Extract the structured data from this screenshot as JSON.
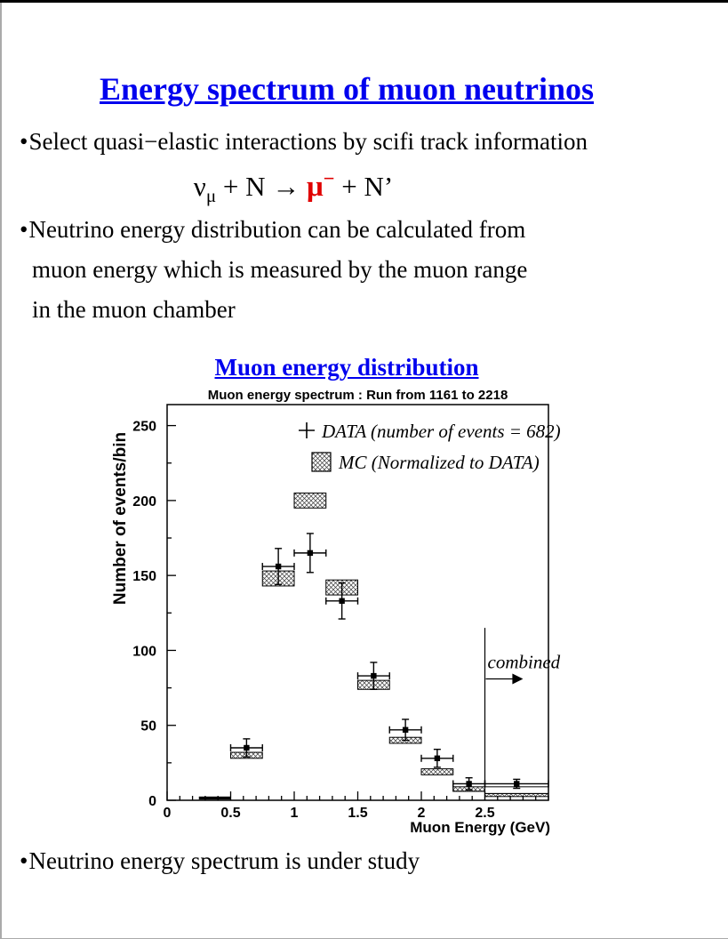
{
  "title": {
    "text": "Energy spectrum of muon neutrinos",
    "color": "#0000ee"
  },
  "bullets": {
    "marker": "•",
    "b1": "Select quasi−elastic interactions by scifi track information",
    "b2_line1": "Neutrino energy distribution can be calculated from",
    "b2_line2": "muon energy which is measured by the muon range",
    "b2_line3": "in the muon chamber",
    "b3": "Neutrino energy spectrum is under study"
  },
  "equation": {
    "nu": "ν",
    "nu_sub": "μ",
    "mid": " + N →  ",
    "mu": "μ",
    "mu_sup": "−",
    "mu_color": "#e00000",
    "tail": "  + N’"
  },
  "chart_heading": {
    "text": "Muon energy distribution",
    "color": "#0000ee"
  },
  "chart_data": {
    "type": "scatter",
    "title": "Muon energy spectrum : Run from 1161 to 2218",
    "xlabel": "Muon Energy (GeV)",
    "ylabel": "Number of events/bin",
    "xlim": [
      0,
      3.0
    ],
    "ylim": [
      0,
      264
    ],
    "grid": false,
    "x_major_ticks": [
      0,
      0.5,
      1,
      1.5,
      2,
      2.5
    ],
    "x_major_labels": [
      "0",
      "0.5",
      "1",
      "1.5",
      "2",
      "2.5"
    ],
    "x_minor_step": 0.1,
    "y_major_ticks": [
      0,
      50,
      100,
      150,
      200,
      250
    ],
    "y_major_labels": [
      "0",
      "50",
      "100",
      "150",
      "200",
      "250"
    ],
    "y_minor_step": 25,
    "legend_position": "top-right-inside",
    "legend": [
      {
        "marker": "plus",
        "label": "DATA (number of events = 682)"
      },
      {
        "marker": "hatched-box",
        "label": "MC (Normalized to DATA)"
      }
    ],
    "series": [
      {
        "name": "DATA",
        "type": "points_with_errors",
        "points": [
          {
            "x": 0.625,
            "y": 35,
            "xerr": 0.125,
            "yerr": 6
          },
          {
            "x": 0.875,
            "y": 156,
            "xerr": 0.125,
            "yerr": 12
          },
          {
            "x": 1.125,
            "y": 165,
            "xerr": 0.125,
            "yerr": 13
          },
          {
            "x": 1.375,
            "y": 133,
            "xerr": 0.125,
            "yerr": 12
          },
          {
            "x": 1.625,
            "y": 83,
            "xerr": 0.125,
            "yerr": 9
          },
          {
            "x": 1.875,
            "y": 47,
            "xerr": 0.125,
            "yerr": 7
          },
          {
            "x": 2.125,
            "y": 28,
            "xerr": 0.125,
            "yerr": 6
          },
          {
            "x": 2.375,
            "y": 11,
            "xerr": 0.125,
            "yerr": 4
          },
          {
            "x": 2.75,
            "y": 11,
            "xerr": 0.25,
            "yerr": 3
          }
        ]
      },
      {
        "name": "MC",
        "type": "histogram_bands",
        "bands": [
          {
            "x0": 0.25,
            "x1": 0.5,
            "lo": 0.5,
            "hi": 2.5,
            "style": "solid"
          },
          {
            "x0": 0.5,
            "x1": 0.75,
            "lo": 28,
            "hi": 32,
            "style": "hatch"
          },
          {
            "x0": 0.75,
            "x1": 1.0,
            "lo": 143,
            "hi": 153,
            "style": "hatch"
          },
          {
            "x0": 1.0,
            "x1": 1.25,
            "lo": 195,
            "hi": 205,
            "style": "hatch"
          },
          {
            "x0": 1.25,
            "x1": 1.5,
            "lo": 137,
            "hi": 147,
            "style": "hatch"
          },
          {
            "x0": 1.5,
            "x1": 1.75,
            "lo": 74,
            "hi": 80,
            "style": "hatch"
          },
          {
            "x0": 1.75,
            "x1": 2.0,
            "lo": 38,
            "hi": 42,
            "style": "hatch"
          },
          {
            "x0": 2.0,
            "x1": 2.25,
            "lo": 17,
            "hi": 21,
            "style": "hatch"
          },
          {
            "x0": 2.25,
            "x1": 2.5,
            "lo": 6,
            "hi": 9,
            "style": "hatch"
          },
          {
            "x0": 2.25,
            "x1": 2.5,
            "lo": 6,
            "hi": 11,
            "style": "outline"
          },
          {
            "x0": 2.5,
            "x1": 3.0,
            "lo": 2.5,
            "hi": 4.5,
            "style": "hatch"
          },
          {
            "x0": 2.5,
            "x1": 3.0,
            "lo": 4.5,
            "hi": 9,
            "style": "outline"
          }
        ]
      }
    ],
    "annotation": {
      "text": "combined",
      "line_x": 2.5,
      "line_top": 115,
      "text_y": 88,
      "arrow_y": 81,
      "arrow_len_gev": 0.3
    }
  }
}
